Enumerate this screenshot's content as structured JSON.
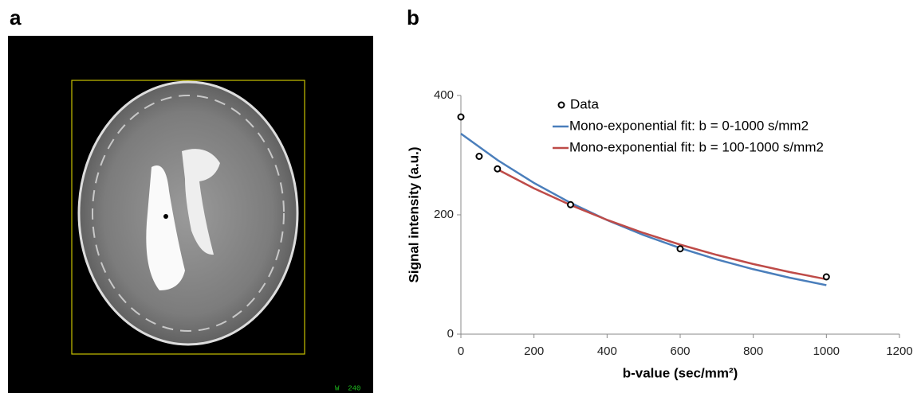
{
  "panel_labels": [
    "a",
    "b"
  ],
  "image_overlay_text": "W  240",
  "chart_data": {
    "type": "scatter",
    "xlabel": "b-value (sec/mm²)",
    "ylabel": "Signal intensity (a.u.)",
    "xlim": [
      0,
      1200
    ],
    "xticks": [
      0,
      200,
      400,
      600,
      800,
      1000,
      1200
    ],
    "ylim": [
      0,
      400
    ],
    "yticks": [
      0,
      200,
      400
    ],
    "grid": false,
    "legend": "top-right",
    "series": [
      {
        "name": "Data",
        "style": "markers",
        "color": "#000000",
        "x": [
          0,
          50,
          100,
          300,
          600,
          1000
        ],
        "values": [
          364,
          298,
          277,
          217,
          143,
          96
        ]
      },
      {
        "name": "Mono-exponential fit: b = 0-1000 s/mm2",
        "style": "line",
        "color": "#4a7ebb",
        "x": [
          0,
          100,
          200,
          300,
          400,
          500,
          600,
          700,
          800,
          900,
          1000
        ],
        "values": [
          336,
          291.8,
          253.4,
          220.1,
          191.2,
          166.0,
          144.2,
          125.2,
          108.8,
          94.5,
          82.1
        ]
      },
      {
        "name": "Mono-exponential fit: b = 100-1000 s/mm2",
        "style": "line",
        "color": "#be4b48",
        "x": [
          100,
          200,
          300,
          400,
          500,
          600,
          700,
          800,
          900,
          1000
        ],
        "values": [
          276.2,
          244.4,
          216.4,
          191.5,
          169.5,
          150.0,
          132.8,
          117.5,
          104.0,
          92.1
        ]
      }
    ]
  }
}
